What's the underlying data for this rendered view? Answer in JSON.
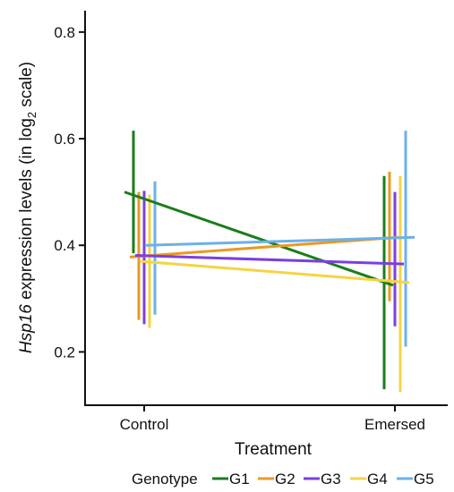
{
  "chart_data": {
    "type": "line",
    "title": "",
    "xlabel": "Treatment",
    "ylabel": {
      "italic": "Hsp16",
      "rest": " expression levels (in log",
      "sub": "2",
      "end": " scale)"
    },
    "categories": [
      "Control",
      "Emersed"
    ],
    "ylim": [
      0.1,
      0.84
    ],
    "yticks": [
      "0.2",
      "0.4",
      "0.6",
      "0.8"
    ],
    "legend": {
      "title": "Genotype",
      "placement": "bottom"
    },
    "series": [
      {
        "name": "G1",
        "color": "#1a7d1a",
        "values": [
          0.5,
          0.325
        ],
        "lower": [
          0.385,
          0.13
        ],
        "upper": [
          0.615,
          0.53
        ]
      },
      {
        "name": "G2",
        "color": "#e99a22",
        "values": [
          0.378,
          0.415
        ],
        "lower": [
          0.26,
          0.295
        ],
        "upper": [
          0.5,
          0.538
        ]
      },
      {
        "name": "G3",
        "color": "#7b3fe0",
        "values": [
          0.381,
          0.365
        ],
        "lower": [
          0.252,
          0.248
        ],
        "upper": [
          0.502,
          0.5
        ]
      },
      {
        "name": "G4",
        "color": "#f5d442",
        "values": [
          0.37,
          0.33
        ],
        "lower": [
          0.245,
          0.125
        ],
        "upper": [
          0.495,
          0.53
        ]
      },
      {
        "name": "G5",
        "color": "#6cb0e8",
        "values": [
          0.4,
          0.415
        ],
        "lower": [
          0.27,
          0.21
        ],
        "upper": [
          0.52,
          0.615
        ]
      }
    ]
  }
}
